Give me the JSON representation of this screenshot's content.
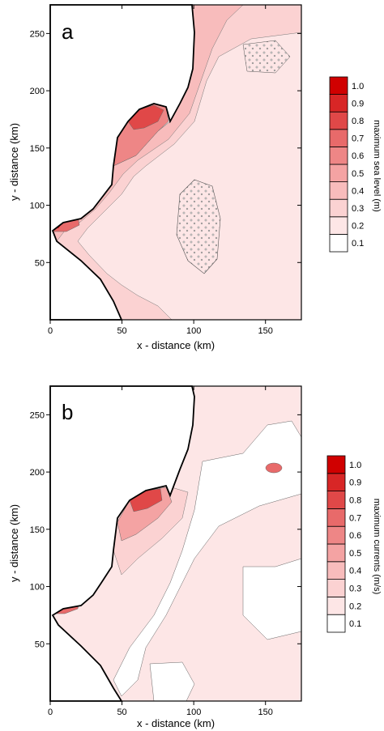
{
  "chart_data": [
    {
      "type": "heatmap",
      "panel_label": "a",
      "xlabel": "x - distance (km)",
      "ylabel": "y - distance (km)",
      "xlim": [
        0,
        175
      ],
      "ylim": [
        0,
        275
      ],
      "xticks": [
        0,
        50,
        100,
        150
      ],
      "yticks": [
        50,
        100,
        150,
        200,
        250
      ],
      "colorbar": {
        "title": "maximum sea level (m)",
        "levels": [
          "0.1",
          "0.2",
          "0.3",
          "0.4",
          "0.5",
          "0.6",
          "0.7",
          "0.8",
          "0.9",
          "1.0"
        ],
        "colors": [
          "#ffffff",
          "#fde6e6",
          "#fbd2d2",
          "#f8bcbc",
          "#f4a3a3",
          "#ee8686",
          "#e86a6a",
          "#e04848",
          "#d82626",
          "#d00000"
        ]
      }
    },
    {
      "type": "heatmap",
      "panel_label": "b",
      "xlabel": "x - distance (km)",
      "ylabel": "y - distance (km)",
      "xlim": [
        0,
        175
      ],
      "ylim": [
        0,
        275
      ],
      "xticks": [
        0,
        50,
        100,
        150
      ],
      "yticks": [
        50,
        100,
        150,
        200,
        250
      ],
      "colorbar": {
        "title": "maximum currents (m/s)",
        "levels": [
          "0.1",
          "0.2",
          "0.3",
          "0.4",
          "0.5",
          "0.6",
          "0.7",
          "0.8",
          "0.9",
          "1.0"
        ],
        "colors": [
          "#ffffff",
          "#fde6e6",
          "#fbd2d2",
          "#f8bcbc",
          "#f4a3a3",
          "#ee8686",
          "#e86a6a",
          "#e04848",
          "#d82626",
          "#d00000"
        ]
      }
    }
  ]
}
